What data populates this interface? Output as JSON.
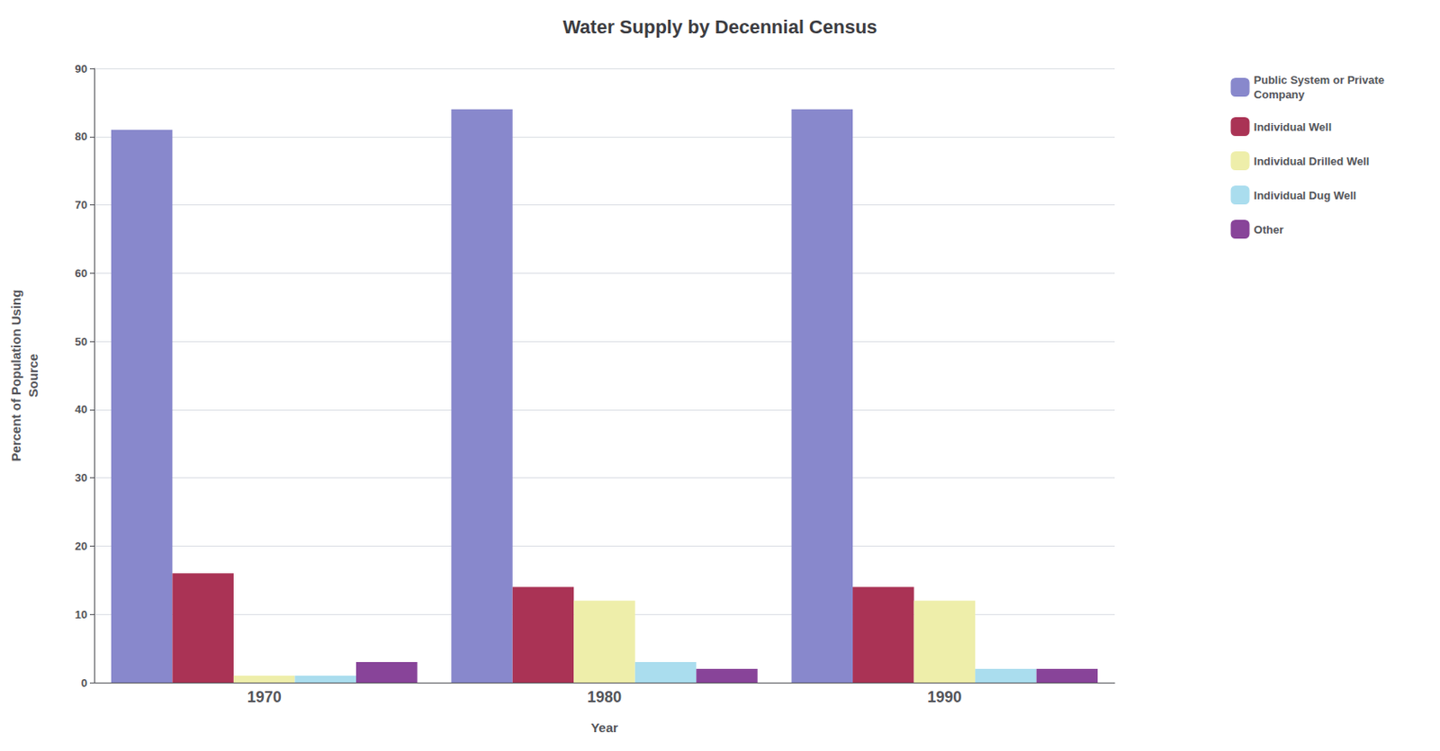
{
  "chart_data": {
    "type": "bar",
    "title": "Water Supply by Decennial Census",
    "xlabel": "Year",
    "ylabel": "Percent of Population Using\nSource",
    "categories": [
      "1970",
      "1980",
      "1990"
    ],
    "series": [
      {
        "name": "Public System or Private\nCompany",
        "color": "#8888cc",
        "values": [
          81,
          84,
          84
        ]
      },
      {
        "name": "Individual Well",
        "color": "#aa3355",
        "values": [
          16,
          14,
          14
        ]
      },
      {
        "name": "Individual Drilled Well",
        "color": "#eeeeaa",
        "values": [
          1,
          12,
          12
        ]
      },
      {
        "name": "Individual Dug Well",
        "color": "#aaddee",
        "values": [
          1,
          3,
          2
        ]
      },
      {
        "name": "Other",
        "color": "#884499",
        "values": [
          3,
          2,
          2
        ]
      }
    ],
    "ylim": [
      0,
      90
    ],
    "yticks": [
      0,
      10,
      20,
      30,
      40,
      50,
      60,
      70,
      80,
      90
    ],
    "grid": true,
    "legend": "right"
  }
}
